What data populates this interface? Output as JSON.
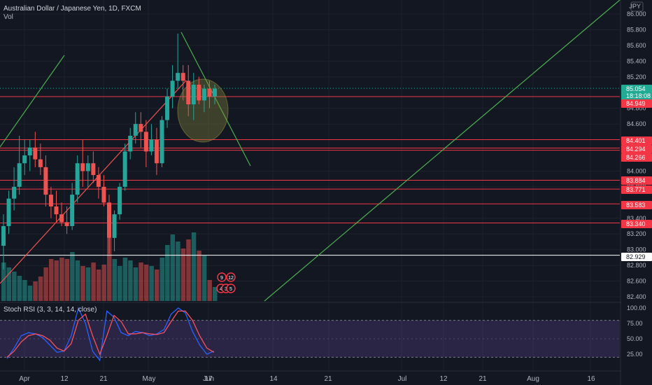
{
  "header": {
    "symbol_title": "Australian Dollar / Japanese Yen, 1D, FXCM",
    "vol_label": "Vol"
  },
  "axis": {
    "currency": "JPY",
    "ticks": [
      "86.000",
      "85.800",
      "85.600",
      "85.400",
      "85.200",
      "84.800",
      "84.600",
      "84.000",
      "83.800",
      "83.400",
      "83.200",
      "83.000",
      "82.800",
      "82.600",
      "82.400"
    ],
    "rsi_ticks": [
      "100.00",
      "75.00",
      "50.00",
      "25.00"
    ],
    "x_ticks": [
      "Apr",
      "12",
      "21",
      "May",
      "17",
      "Jun",
      "14",
      "21",
      "Jul",
      "12",
      "21",
      "Aug",
      "16"
    ]
  },
  "price_labels": [
    {
      "text": "85.054",
      "bg": "#22ab94"
    },
    {
      "text": "18:18:08",
      "bg": "#22ab94"
    },
    {
      "text": "84.949",
      "bg": "#f23645"
    },
    {
      "text": "84.401",
      "bg": "#f23645"
    },
    {
      "text": "84.294",
      "bg": "#f23645"
    },
    {
      "text": "84.266",
      "bg": "#f23645"
    },
    {
      "text": "83.884",
      "bg": "#f23645"
    },
    {
      "text": "83.771",
      "bg": "#f23645"
    },
    {
      "text": "83.583",
      "bg": "#f23645"
    },
    {
      "text": "83.340",
      "bg": "#f23645"
    },
    {
      "text": "82.929",
      "bg": "#ffffff"
    }
  ],
  "stoch_rsi": {
    "label": "Stoch RSI (3, 3, 14, 14, close)"
  },
  "events": {
    "badge_numbers": [
      "9",
      "12",
      "4",
      "3",
      "5"
    ]
  },
  "colors": {
    "background": "#131722",
    "up": "#26a69a",
    "down": "#ef5350",
    "level_line": "#f23645",
    "trend_line": "#4caf50",
    "rsi_k": "#2962ff",
    "rsi_d": "#f7525f"
  },
  "chart_data": {
    "type": "candlestick",
    "title": "Australian Dollar / Japanese Yen, 1D, FXCM",
    "y_unit": "JPY",
    "ylim": [
      82.4,
      86.0
    ],
    "horizontal_levels": [
      84.949,
      84.401,
      84.294,
      84.266,
      83.884,
      83.771,
      83.583,
      83.34,
      82.929
    ],
    "last_price": 85.054,
    "candles": [
      {
        "o": 83.05,
        "h": 83.45,
        "l": 82.75,
        "c": 83.3
      },
      {
        "o": 83.3,
        "h": 83.75,
        "l": 83.2,
        "c": 83.65
      },
      {
        "o": 83.65,
        "h": 84.05,
        "l": 83.5,
        "c": 83.8
      },
      {
        "o": 83.8,
        "h": 84.45,
        "l": 83.7,
        "c": 84.1
      },
      {
        "o": 84.1,
        "h": 84.4,
        "l": 83.95,
        "c": 84.2
      },
      {
        "o": 84.2,
        "h": 84.4,
        "l": 84.0,
        "c": 84.3
      },
      {
        "o": 84.3,
        "h": 84.5,
        "l": 84.05,
        "c": 84.15
      },
      {
        "o": 84.15,
        "h": 84.35,
        "l": 83.95,
        "c": 84.05
      },
      {
        "o": 84.05,
        "h": 84.2,
        "l": 83.55,
        "c": 83.7
      },
      {
        "o": 83.7,
        "h": 83.8,
        "l": 83.4,
        "c": 83.55
      },
      {
        "o": 83.55,
        "h": 83.75,
        "l": 83.35,
        "c": 83.45
      },
      {
        "o": 83.45,
        "h": 83.6,
        "l": 83.3,
        "c": 83.35
      },
      {
        "o": 83.35,
        "h": 83.55,
        "l": 83.2,
        "c": 83.3
      },
      {
        "o": 83.3,
        "h": 83.85,
        "l": 83.25,
        "c": 83.7
      },
      {
        "o": 83.7,
        "h": 84.2,
        "l": 83.6,
        "c": 84.1
      },
      {
        "o": 84.1,
        "h": 84.4,
        "l": 83.8,
        "c": 84.0
      },
      {
        "o": 84.0,
        "h": 84.2,
        "l": 83.8,
        "c": 84.1
      },
      {
        "o": 84.1,
        "h": 84.25,
        "l": 83.85,
        "c": 83.95
      },
      {
        "o": 83.95,
        "h": 84.05,
        "l": 83.65,
        "c": 83.8
      },
      {
        "o": 83.8,
        "h": 83.95,
        "l": 83.55,
        "c": 83.6
      },
      {
        "o": 83.6,
        "h": 83.7,
        "l": 82.95,
        "c": 83.15
      },
      {
        "o": 83.15,
        "h": 83.5,
        "l": 82.98,
        "c": 83.45
      },
      {
        "o": 83.45,
        "h": 83.85,
        "l": 83.38,
        "c": 83.8
      },
      {
        "o": 83.8,
        "h": 84.35,
        "l": 83.75,
        "c": 84.25
      },
      {
        "o": 84.25,
        "h": 84.55,
        "l": 84.15,
        "c": 84.45
      },
      {
        "o": 84.45,
        "h": 84.75,
        "l": 84.35,
        "c": 84.6
      },
      {
        "o": 84.6,
        "h": 84.75,
        "l": 84.3,
        "c": 84.5
      },
      {
        "o": 84.5,
        "h": 84.65,
        "l": 84.05,
        "c": 84.25
      },
      {
        "o": 84.25,
        "h": 84.6,
        "l": 84.2,
        "c": 84.4
      },
      {
        "o": 84.4,
        "h": 84.55,
        "l": 83.95,
        "c": 84.1
      },
      {
        "o": 84.1,
        "h": 84.7,
        "l": 84.05,
        "c": 84.65
      },
      {
        "o": 84.65,
        "h": 85.05,
        "l": 84.55,
        "c": 84.95
      },
      {
        "o": 84.95,
        "h": 85.35,
        "l": 84.8,
        "c": 85.15
      },
      {
        "o": 85.15,
        "h": 85.75,
        "l": 85.05,
        "c": 85.25
      },
      {
        "o": 85.25,
        "h": 85.35,
        "l": 84.9,
        "c": 85.15
      },
      {
        "o": 85.15,
        "h": 85.35,
        "l": 84.7,
        "c": 84.85
      },
      {
        "o": 84.85,
        "h": 85.25,
        "l": 84.65,
        "c": 85.1
      },
      {
        "o": 85.1,
        "h": 85.2,
        "l": 84.85,
        "c": 84.9
      },
      {
        "o": 84.9,
        "h": 85.1,
        "l": 84.75,
        "c": 85.05
      },
      {
        "o": 85.05,
        "h": 85.15,
        "l": 84.8,
        "c": 84.95
      },
      {
        "o": 84.95,
        "h": 85.1,
        "l": 84.85,
        "c": 85.05
      }
    ]
  }
}
